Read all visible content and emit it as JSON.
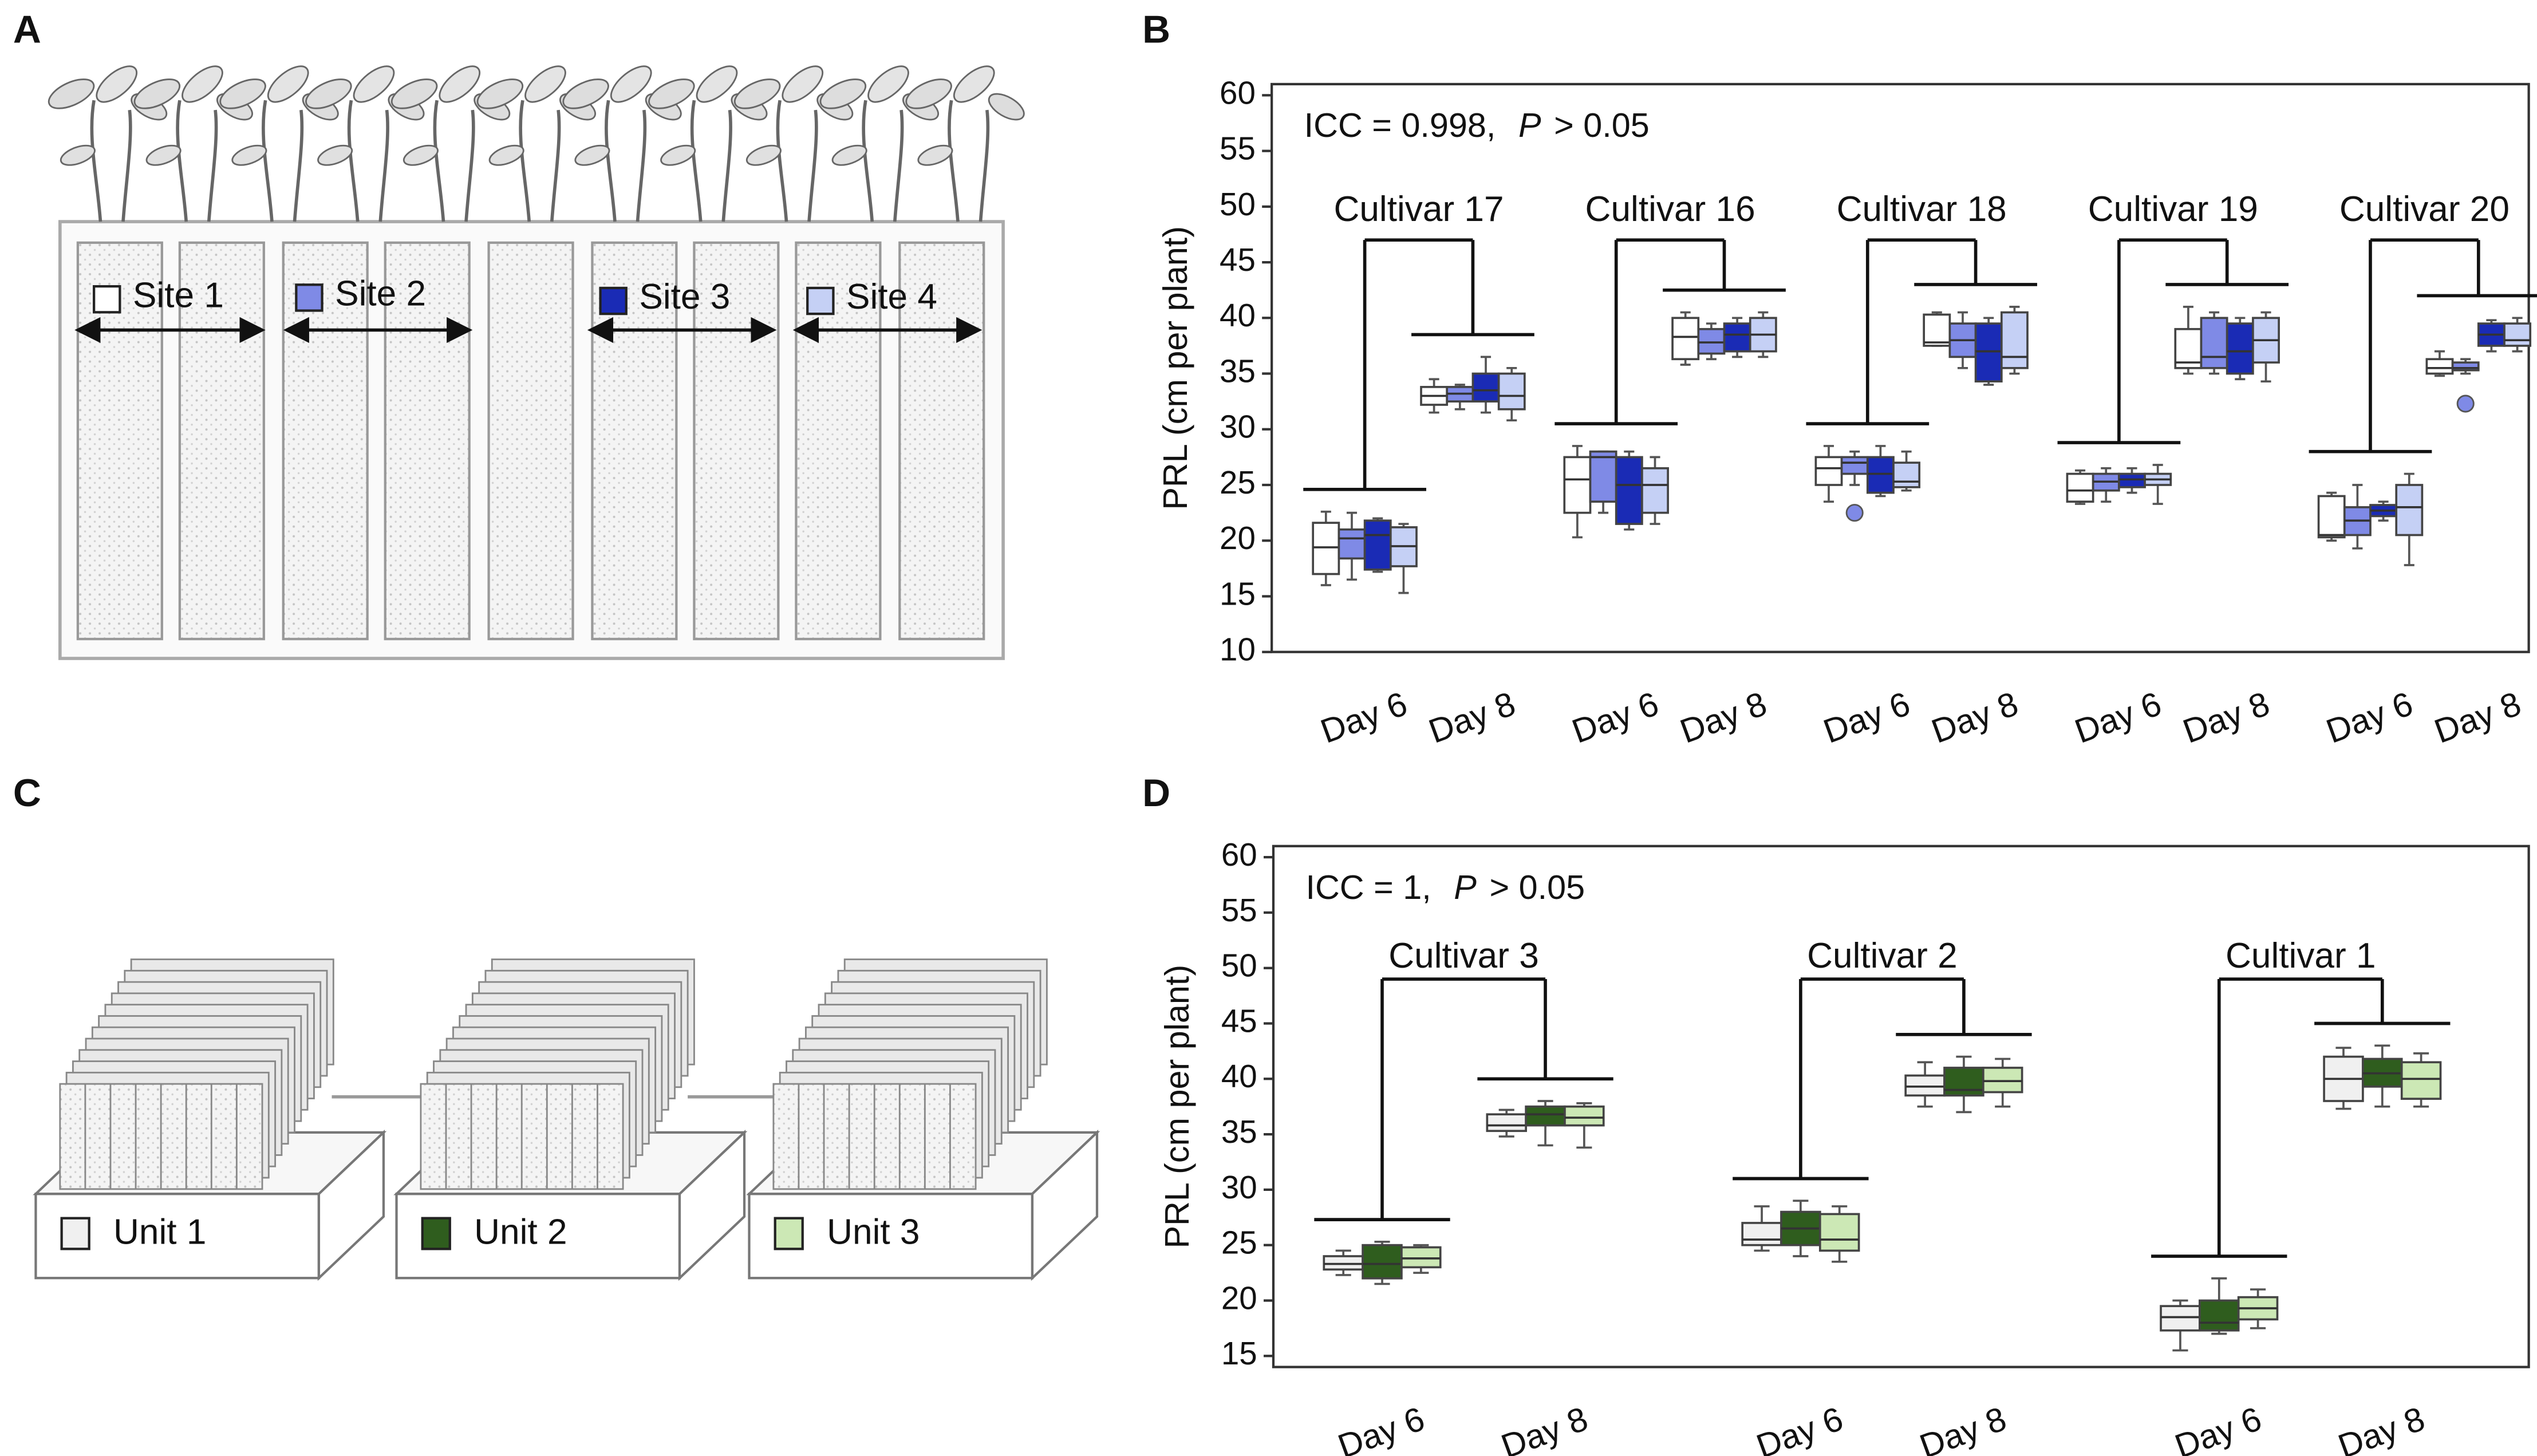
{
  "panel_labels": [
    "A",
    "B",
    "C",
    "D"
  ],
  "chart_data": [
    {
      "type": "box",
      "y_label": "PRL (cm per plant)",
      "stat": "ICC = 0.998,",
      "p_symbol": "P",
      "p_text": "> 0.05",
      "groups": [
        "Cultivar 17",
        "Cultivar 16",
        "Cultivar 18",
        "Cultivar 19",
        "Cultivar 20"
      ],
      "categories": [
        "Day 6",
        "Day 8",
        "Day 6",
        "Day 8",
        "Day 6",
        "Day 8",
        "Day 6",
        "Day 8",
        "Day 6",
        "Day 8"
      ],
      "ylim": [
        10,
        61
      ],
      "yticks": [
        10,
        15,
        20,
        25,
        30,
        35,
        40,
        45,
        50,
        55,
        60
      ],
      "series": [
        {
          "name": "Site 1",
          "color": "#ffffff",
          "boxes": [
            {
              "min": 16,
              "q1": 17,
              "median": 19.4,
              "q3": 21.6,
              "max": 22.6
            },
            {
              "min": 31.5,
              "q1": 32.2,
              "median": 33,
              "q3": 33.8,
              "max": 34.5
            },
            {
              "min": 20.3,
              "q1": 22.5,
              "median": 25.5,
              "q3": 27.5,
              "max": 28.5
            },
            {
              "min": 35.8,
              "q1": 36.3,
              "median": 38.3,
              "q3": 40,
              "max": 40.5
            },
            {
              "min": 23.5,
              "q1": 25,
              "median": 26.5,
              "q3": 27.5,
              "max": 28.5
            },
            {
              "min": 37.5,
              "q1": 37.5,
              "median": 37.8,
              "q3": 40.3,
              "max": 40.5
            },
            {
              "min": 23.3,
              "q1": 23.5,
              "median": 24.5,
              "q3": 26,
              "max": 26.3
            },
            {
              "min": 35,
              "q1": 35.5,
              "median": 36,
              "q3": 39,
              "max": 41
            },
            {
              "min": 20,
              "q1": 20.3,
              "median": 20.5,
              "q3": 24,
              "max": 24.3
            },
            {
              "min": 34.8,
              "q1": 35,
              "median": 35.5,
              "q3": 36.3,
              "max": 37
            }
          ]
        },
        {
          "name": "Site 2",
          "color": "#7f8ae6",
          "boxes": [
            {
              "min": 16.5,
              "q1": 18.4,
              "median": 20.2,
              "q3": 21,
              "max": 22.5
            },
            {
              "min": 31.8,
              "q1": 32.5,
              "median": 33.2,
              "q3": 33.8,
              "max": 34
            },
            {
              "min": 22.5,
              "q1": 23.5,
              "median": 27.5,
              "q3": 28,
              "max": 28
            },
            {
              "min": 36.3,
              "q1": 36.8,
              "median": 37.8,
              "q3": 39,
              "max": 39.5
            },
            {
              "min": 25,
              "q1": 26,
              "median": 27,
              "q3": 27.5,
              "max": 28,
              "outliers": [
                22.5
              ]
            },
            {
              "min": 35.5,
              "q1": 36.5,
              "median": 38,
              "q3": 39.5,
              "max": 40.5
            },
            {
              "min": 23.5,
              "q1": 24.5,
              "median": 25.3,
              "q3": 26,
              "max": 26.5
            },
            {
              "min": 35,
              "q1": 35.5,
              "median": 36.5,
              "q3": 40,
              "max": 40.5
            },
            {
              "min": 19.3,
              "q1": 20.5,
              "median": 21.8,
              "q3": 23,
              "max": 25
            },
            {
              "min": 35,
              "q1": 35.3,
              "median": 35.5,
              "q3": 36,
              "max": 36.3,
              "outliers": [
                32.3
              ]
            }
          ]
        },
        {
          "name": "Site 3",
          "color": "#1a2bb5",
          "boxes": [
            {
              "min": 17.2,
              "q1": 17.4,
              "median": 20.5,
              "q3": 21.8,
              "max": 22
            },
            {
              "min": 31.5,
              "q1": 32.5,
              "median": 33.5,
              "q3": 35,
              "max": 36.5
            },
            {
              "min": 21,
              "q1": 21.5,
              "median": 25,
              "q3": 27.5,
              "max": 28
            },
            {
              "min": 36.5,
              "q1": 37,
              "median": 38.5,
              "q3": 39.5,
              "max": 40
            },
            {
              "min": 24,
              "q1": 24.3,
              "median": 26,
              "q3": 27.5,
              "max": 28.5
            },
            {
              "min": 34,
              "q1": 34.3,
              "median": 37,
              "q3": 39.5,
              "max": 40
            },
            {
              "min": 24.3,
              "q1": 24.8,
              "median": 25.5,
              "q3": 26,
              "max": 26.5
            },
            {
              "min": 34.5,
              "q1": 35,
              "median": 37,
              "q3": 39.5,
              "max": 40
            },
            {
              "min": 21.8,
              "q1": 22.2,
              "median": 22.7,
              "q3": 23.2,
              "max": 23.5
            },
            {
              "min": 37,
              "q1": 37.5,
              "median": 38.5,
              "q3": 39.5,
              "max": 39.8
            }
          ]
        },
        {
          "name": "Site 4",
          "color": "#c5d0f5",
          "boxes": [
            {
              "min": 15.3,
              "q1": 17.7,
              "median": 19.5,
              "q3": 21.2,
              "max": 21.5
            },
            {
              "min": 30.8,
              "q1": 31.8,
              "median": 33,
              "q3": 35,
              "max": 35.5
            },
            {
              "min": 21.5,
              "q1": 22.5,
              "median": 25,
              "q3": 26.5,
              "max": 27.5
            },
            {
              "min": 36.5,
              "q1": 37,
              "median": 38.5,
              "q3": 40,
              "max": 40.5
            },
            {
              "min": 24.5,
              "q1": 24.8,
              "median": 25.3,
              "q3": 27,
              "max": 28
            },
            {
              "min": 35,
              "q1": 35.5,
              "median": 36.5,
              "q3": 40.5,
              "max": 41
            },
            {
              "min": 23.3,
              "q1": 25,
              "median": 25.5,
              "q3": 26,
              "max": 26.8
            },
            {
              "min": 34.3,
              "q1": 36,
              "median": 38,
              "q3": 40,
              "max": 40.5
            },
            {
              "min": 17.8,
              "q1": 20.5,
              "median": 23,
              "q3": 25,
              "max": 26
            },
            {
              "min": 37,
              "q1": 37.5,
              "median": 38,
              "q3": 39.5,
              "max": 40
            }
          ]
        }
      ]
    },
    {
      "type": "box",
      "y_label": "PRL (cm per plant)",
      "stat": "ICC = 1,",
      "p_symbol": "P",
      "p_text": "> 0.05",
      "groups": [
        "Cultivar 3",
        "Cultivar 2",
        "Cultivar 1"
      ],
      "categories": [
        "Day 6",
        "Day 8",
        "Day 6",
        "Day 8",
        "Day 6",
        "Day 8"
      ],
      "ylim": [
        14,
        61
      ],
      "yticks": [
        15,
        20,
        25,
        30,
        35,
        40,
        45,
        50,
        55,
        60
      ],
      "series": [
        {
          "name": "Unit 1",
          "color": "#f0f0f0",
          "boxes": [
            {
              "min": 22.3,
              "q1": 22.8,
              "median": 23.3,
              "q3": 24,
              "max": 24.5
            },
            {
              "min": 34.8,
              "q1": 35.3,
              "median": 35.8,
              "q3": 36.8,
              "max": 37.2
            },
            {
              "min": 24.5,
              "q1": 25,
              "median": 25.5,
              "q3": 27,
              "max": 28.5
            },
            {
              "min": 37.5,
              "q1": 38.5,
              "median": 39.3,
              "q3": 40.3,
              "max": 41.5
            },
            {
              "min": 15.5,
              "q1": 17.3,
              "median": 18.5,
              "q3": 19.5,
              "max": 20
            },
            {
              "min": 37.3,
              "q1": 38,
              "median": 40,
              "q3": 42,
              "max": 42.8
            }
          ]
        },
        {
          "name": "Unit 2",
          "color": "#2f5d1e",
          "boxes": [
            {
              "min": 21.5,
              "q1": 22,
              "median": 23.3,
              "q3": 25,
              "max": 25.3
            },
            {
              "min": 34,
              "q1": 35.8,
              "median": 36.8,
              "q3": 37.5,
              "max": 38
            },
            {
              "min": 24,
              "q1": 25,
              "median": 26.5,
              "q3": 28,
              "max": 29
            },
            {
              "min": 37,
              "q1": 38.5,
              "median": 39,
              "q3": 41,
              "max": 42
            },
            {
              "min": 17,
              "q1": 17.3,
              "median": 18,
              "q3": 20,
              "max": 22
            },
            {
              "min": 37.5,
              "q1": 39.3,
              "median": 40.5,
              "q3": 41.8,
              "max": 43
            }
          ]
        },
        {
          "name": "Unit 3",
          "color": "#cce8b5",
          "boxes": [
            {
              "min": 22.5,
              "q1": 23,
              "median": 23.8,
              "q3": 24.8,
              "max": 25
            },
            {
              "min": 33.8,
              "q1": 35.8,
              "median": 36.5,
              "q3": 37.5,
              "max": 37.8
            },
            {
              "min": 23.5,
              "q1": 24.5,
              "median": 25.5,
              "q3": 27.8,
              "max": 28.5
            },
            {
              "min": 37.5,
              "q1": 38.8,
              "median": 39.8,
              "q3": 41,
              "max": 41.8
            },
            {
              "min": 17.5,
              "q1": 18.3,
              "median": 19.3,
              "q3": 20.3,
              "max": 21
            },
            {
              "min": 37.5,
              "q1": 38.2,
              "median": 40,
              "q3": 41.5,
              "max": 42.3
            }
          ]
        }
      ]
    }
  ]
}
